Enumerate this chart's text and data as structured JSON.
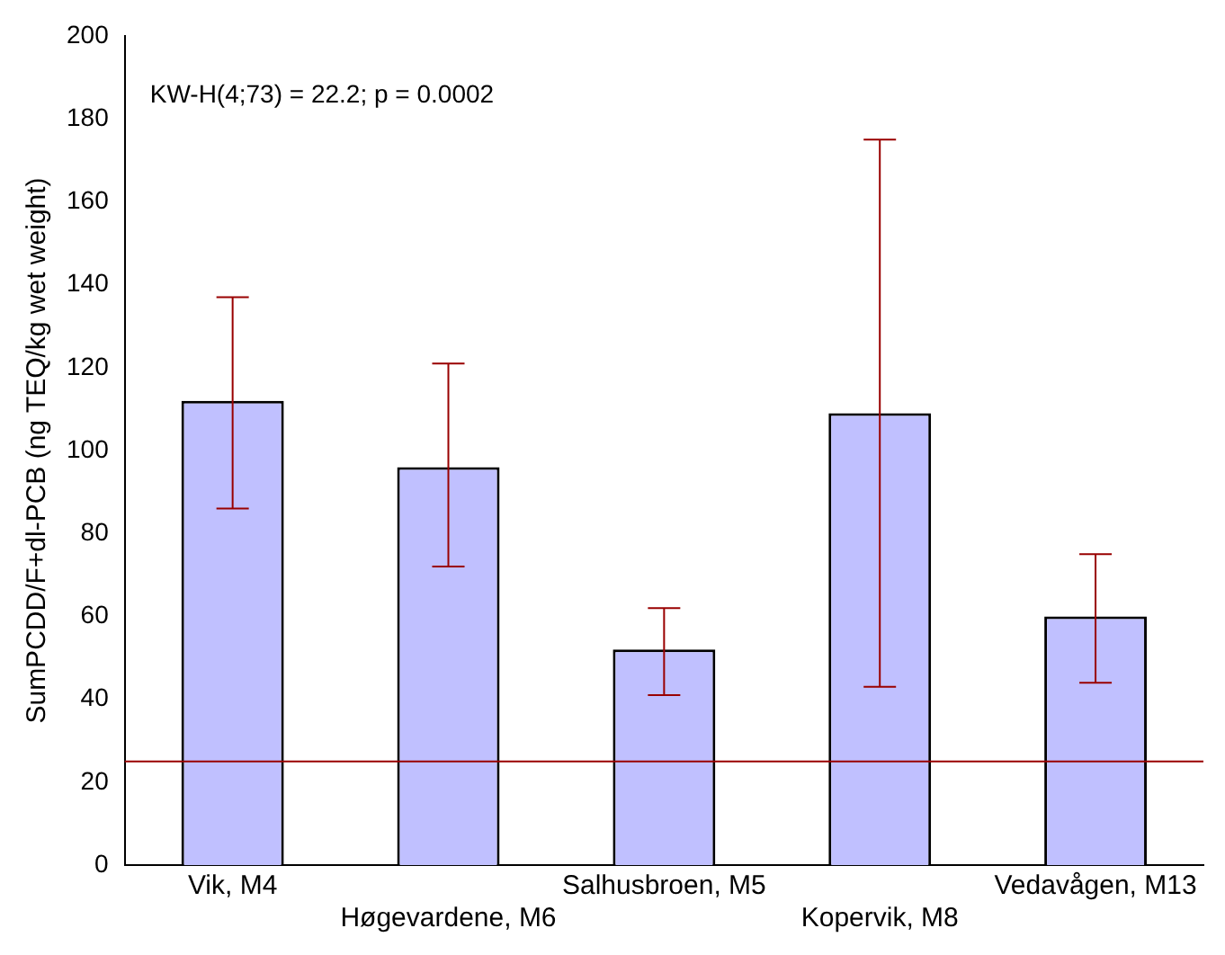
{
  "chart_data": {
    "type": "bar",
    "ylabel": "SumPCDD/F+dl-PCB (ng TEQ/kg wet weight)",
    "categories": [
      "Vik, M4",
      "Høgevardene, M6",
      "Salhusbroen, M5",
      "Kopervik, M8",
      "Vedavågen, M13"
    ],
    "values": [
      112,
      96,
      52,
      109,
      60
    ],
    "color": "#c0c0ff",
    "errors": [
      [
        86,
        137
      ],
      [
        72,
        121
      ],
      [
        41,
        62
      ],
      [
        43,
        175
      ],
      [
        44,
        75
      ]
    ],
    "ylim": [
      0,
      200
    ],
    "yticks": [
      0,
      20,
      40,
      60,
      80,
      100,
      120,
      140,
      160,
      180,
      200
    ],
    "grid": false,
    "ref_lines": [
      {
        "axis": "y",
        "value": 25,
        "color": "#990000"
      }
    ],
    "annotations": [
      "KW-H(4;73) = 22.2; p = 0.0002"
    ]
  }
}
